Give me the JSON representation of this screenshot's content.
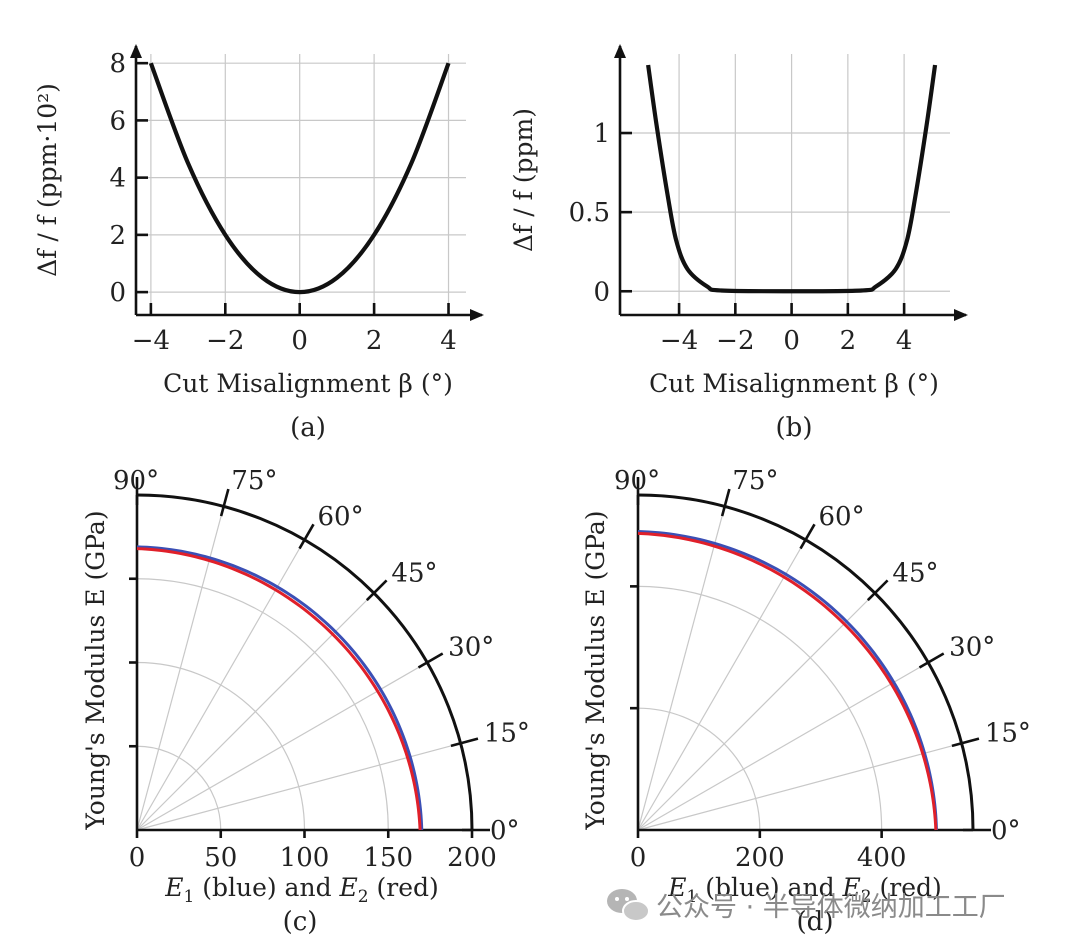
{
  "chart_data": [
    {
      "panel": "(a)",
      "type": "line",
      "xlabel": "Cut Misalignment β (°)",
      "ylabel": "Δf / f (ppm·10²)",
      "xlim": [
        -4.4,
        4.9
      ],
      "ylim": [
        -0.8,
        8.6
      ],
      "xticks": [
        -4,
        -2,
        0,
        2,
        4
      ],
      "xtick_labels": [
        "−4",
        "−2",
        "0",
        "2",
        "4"
      ],
      "yticks": [
        0,
        2,
        4,
        6,
        8
      ],
      "ytick_labels": [
        "0",
        "2",
        "4",
        "6",
        "8"
      ],
      "grid": true,
      "series": [
        {
          "name": "Δf/f",
          "x": [
            -4,
            -3,
            -2,
            -1,
            0,
            1,
            2,
            3,
            4
          ],
          "y": [
            8,
            4.5,
            2,
            0.5,
            0,
            0.5,
            2,
            4.5,
            8
          ]
        }
      ]
    },
    {
      "panel": "(b)",
      "type": "line",
      "xlabel": "Cut Misalignment β (°)",
      "ylabel": "Δf / f (ppm)",
      "xlim": [
        -6.1,
        6.2
      ],
      "ylim": [
        -0.15,
        1.55
      ],
      "xticks": [
        -4,
        -2,
        0,
        2,
        4
      ],
      "xtick_labels": [
        "−4",
        "−2",
        "0",
        "2",
        "4"
      ],
      "yticks": [
        0,
        0.5,
        1
      ],
      "ytick_labels": [
        "0",
        "0.5",
        "1"
      ],
      "grid": true,
      "series": [
        {
          "name": "Δf/f",
          "x": [
            -5.1,
            -4.8,
            -4.4,
            -4.1,
            -3.7,
            -3.0,
            -2.5,
            0,
            2.5,
            3.0,
            3.7,
            4.1,
            4.4,
            4.8,
            5.1
          ],
          "y": [
            1.43,
            1.05,
            0.6,
            0.32,
            0.14,
            0.03,
            0.005,
            0,
            0.005,
            0.03,
            0.14,
            0.32,
            0.6,
            1.05,
            1.43
          ]
        }
      ]
    },
    {
      "panel": "(c)",
      "type": "polar",
      "xlabel_parts": [
        "E",
        "1",
        " (blue) and ",
        "E",
        "2",
        " (red)"
      ],
      "ylabel": "Young's Modulus E (GPa)",
      "r_max": 200,
      "r_ticks": [
        50,
        100,
        150
      ],
      "x_tick_labels": [
        "0",
        "50",
        "100",
        "150",
        "200"
      ],
      "x_tick_values": [
        0,
        50,
        100,
        150,
        200
      ],
      "angle_ticks": [
        0,
        15,
        30,
        45,
        60,
        75,
        90
      ],
      "angle_labels": [
        "0°",
        "15°",
        "30°",
        "45°",
        "60°",
        "75°",
        "90°"
      ],
      "series": [
        {
          "name": "E1",
          "color": "#3b4fb5",
          "r_at_0deg": 170,
          "r_at_90deg": 169
        },
        {
          "name": "E2",
          "color": "#e0202a",
          "r_at_0deg": 169,
          "r_at_90deg": 168
        }
      ]
    },
    {
      "panel": "(d)",
      "type": "polar",
      "xlabel_parts": [
        "E",
        "1",
        " (blue) and ",
        "E",
        "2",
        " (red)"
      ],
      "ylabel": "Young's Modulus E (GPa)",
      "r_max": 550,
      "r_ticks": [
        200,
        400
      ],
      "x_tick_labels": [
        "0",
        "200",
        "400"
      ],
      "x_tick_values": [
        0,
        200,
        400
      ],
      "angle_ticks": [
        0,
        15,
        30,
        45,
        60,
        75,
        90
      ],
      "angle_labels": [
        "0°",
        "15°",
        "30°",
        "45°",
        "60°",
        "75°",
        "90°"
      ],
      "series": [
        {
          "name": "E1",
          "color": "#3b4fb5",
          "r_at_0deg": 490,
          "r_at_90deg": 490
        },
        {
          "name": "E2",
          "color": "#e0202a",
          "r_at_0deg": 489,
          "r_at_90deg": 487
        }
      ]
    }
  ],
  "watermark": {
    "logo_icon": "wechat-icon",
    "text": "公众号 · 半导体微纳加工工厂"
  }
}
